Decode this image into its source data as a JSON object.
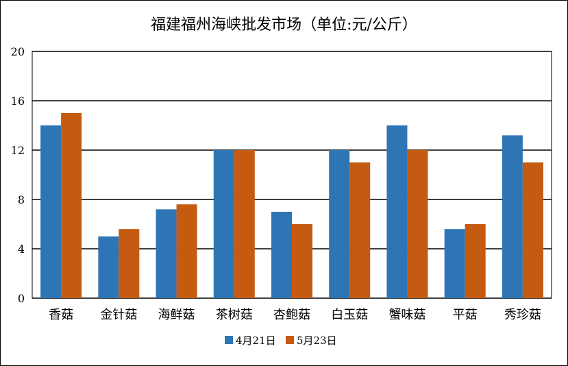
{
  "chart_data": {
    "type": "bar",
    "title": "福建福州海峡批发市场（单位:元/公斤）",
    "categories": [
      "香菇",
      "金针菇",
      "海鲜菇",
      "茶树菇",
      "杏鲍菇",
      "白玉菇",
      "蟹味菇",
      "平菇",
      "秀珍菇"
    ],
    "series": [
      {
        "name": "4月21日",
        "color": "#2E75B6",
        "values": [
          14,
          5,
          7.2,
          12,
          7,
          12,
          14,
          5.6,
          13.2
        ]
      },
      {
        "name": "5月23日",
        "color": "#C55A11",
        "values": [
          15,
          5.6,
          7.6,
          12,
          6,
          11,
          12,
          6,
          11
        ]
      }
    ],
    "ylim": [
      0,
      20
    ],
    "yticks": [
      0,
      4,
      8,
      12,
      16,
      20
    ],
    "grid": true,
    "legend": "bottom"
  }
}
